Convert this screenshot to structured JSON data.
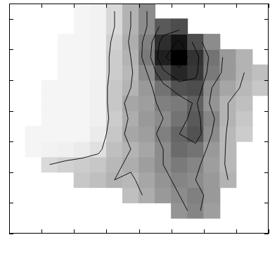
{
  "chart_data": {
    "type": "heatmap",
    "xlim": [
      0,
      16
    ],
    "ylim": [
      0,
      15
    ],
    "xticks": [
      0,
      2,
      4,
      6,
      8,
      10,
      12,
      14,
      16
    ],
    "yticks": [
      0,
      2,
      4,
      6,
      8,
      10,
      12,
      14
    ],
    "tick_labels": false,
    "grid": false,
    "zlim": [
      0,
      100
    ],
    "contour_levels": [
      15,
      30,
      45,
      60,
      75,
      90
    ],
    "z": [
      [
        null,
        null,
        null,
        null,
        null,
        null,
        null,
        null,
        null,
        null,
        null,
        null,
        null,
        null,
        null,
        null
      ],
      [
        null,
        null,
        null,
        null,
        null,
        null,
        null,
        null,
        null,
        null,
        42,
        48,
        38,
        null,
        null,
        null
      ],
      [
        null,
        null,
        null,
        null,
        null,
        null,
        null,
        25,
        32,
        40,
        45,
        50,
        40,
        null,
        null,
        null
      ],
      [
        null,
        null,
        null,
        null,
        22,
        25,
        30,
        28,
        35,
        42,
        48,
        45,
        40,
        30,
        null,
        null
      ],
      [
        null,
        null,
        15,
        18,
        20,
        22,
        28,
        32,
        38,
        45,
        52,
        48,
        38,
        28,
        null,
        null
      ],
      [
        null,
        4,
        5,
        6,
        8,
        12,
        25,
        30,
        35,
        45,
        58,
        55,
        40,
        28,
        null,
        null
      ],
      [
        null,
        4,
        4,
        4,
        4,
        8,
        22,
        35,
        38,
        50,
        60,
        68,
        45,
        28,
        20,
        null
      ],
      [
        null,
        null,
        4,
        4,
        4,
        6,
        20,
        32,
        40,
        45,
        55,
        65,
        48,
        30,
        22,
        null
      ],
      [
        null,
        null,
        4,
        4,
        4,
        6,
        22,
        35,
        38,
        50,
        52,
        62,
        42,
        30,
        25,
        null
      ],
      [
        null,
        null,
        4,
        4,
        4,
        6,
        22,
        30,
        40,
        55,
        68,
        70,
        45,
        35,
        28,
        22
      ],
      [
        null,
        null,
        null,
        4,
        4,
        5,
        20,
        28,
        45,
        72,
        85,
        78,
        52,
        40,
        30,
        25
      ],
      [
        null,
        null,
        null,
        4,
        4,
        5,
        20,
        30,
        52,
        88,
        100,
        80,
        55,
        40,
        30,
        null
      ],
      [
        null,
        null,
        null,
        4,
        4,
        5,
        18,
        32,
        50,
        82,
        92,
        70,
        45,
        null,
        null,
        null
      ],
      [
        null,
        null,
        null,
        null,
        4,
        5,
        15,
        30,
        45,
        65,
        70,
        null,
        null,
        null,
        null,
        null
      ],
      [
        null,
        null,
        null,
        null,
        4,
        5,
        15,
        30,
        45,
        null,
        null,
        null,
        null,
        null,
        null,
        null
      ]
    ]
  }
}
